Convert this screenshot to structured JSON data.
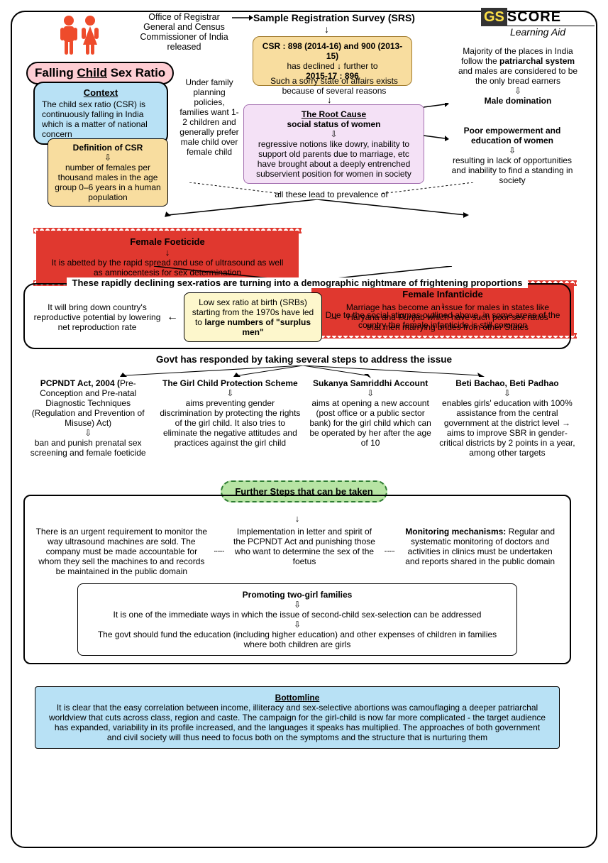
{
  "logo": {
    "gs": "GS",
    "score": "SCORE",
    "sub": "Learning Aid"
  },
  "header": {
    "office": "Office of Registrar General and Census Commissioner of India released",
    "srs_title": "Sample Registration Survey (SRS)"
  },
  "title": {
    "prefix": "Falling ",
    "mid": "Child",
    "suffix": " Sex Ratio"
  },
  "context": {
    "h": "Context",
    "t": "The child sex ratio (CSR) is continuously falling in India which is a matter of national concern"
  },
  "def": {
    "h": "Definition of CSR",
    "t": "number of females per thousand males in the age group 0–6 years in a human population"
  },
  "family": "Under family planning policies, families want 1-2 children and generally prefer male child over female child",
  "srs": {
    "l1": "CSR : 898 (2014-16) and 900 (2013-15)",
    "l2": "has declined ↓ further to",
    "l3": "2015-17 : 896"
  },
  "sorry": "Such a sorry state of affairs exists because of several reasons",
  "root": {
    "h": "The Root Cause",
    "s": "social status of women",
    "t": "regressive notions like  dowry, inability to support old parents due to marriage, etc have brought about a deeply entrenched subservient position for women in society"
  },
  "patriarchal": {
    "t": "Majority of the places in India follow the patriarchal system and males are considered to be the only bread earners",
    "c": "Male domination"
  },
  "empower": {
    "h": "Poor empowerment and education of women",
    "t": "resulting in lack of opportunities and inability to find a standing in society"
  },
  "leadto": "all these lead to prevalence of",
  "foeticide": {
    "h": "Female Foeticide",
    "t": "It is abetted by the rapid spread and use of ultrasound as well as amniocentesis for sex determination"
  },
  "infanticide": {
    "h": "Female Infanticide",
    "t": "Due to the social stigmas outlined above, in some areas of the country the female infanticide is still common"
  },
  "nightmare": {
    "h": "These rapidly declining sex-ratios are turning into a demographic nightmare of frightening proportions",
    "left": "It will bring down country's reproductive potential by lowering net reproduction rate",
    "mid1": "Low sex ratio at birth (SRBs) starting from the 1970s have led to ",
    "mid2": "large numbers of \"surplus men\"",
    "right": "Marriage has become an issue for males in states like Haryana and Punjab which have such poor sex ratios that men marrying brides from other States"
  },
  "govt": {
    "h": "Govt has responded by taking several steps to address the issue",
    "c1h": "PCPNDT Act, 2004 (",
    "c1h2": "Pre-Conception and Pre-natal Diagnostic Techniques (Regulation and Prevention of Misuse) Act)",
    "c1t": "ban and punish prenatal sex screening and female foeticide",
    "c2h": "The Girl Child Protection Scheme",
    "c2t": "aims preventing gender discrimination by protecting the rights of the girl child. It also tries to eliminate the negative attitudes and practices against the girl child",
    "c3h": "Sukanya Samriddhi Account",
    "c3t": "aims at opening a new account (post office or a public sector bank) for the girl child which can be operated by her after the age of 10",
    "c4h": "Beti Bachao, Beti Padhao",
    "c4t": "enables girls' education with 100% assistance from the central government at the district level → aims to improve SBR in gender-critical districts by 2 points in a year, among other targets"
  },
  "further": {
    "h": "Further Steps that can be taken",
    "left": "There is an urgent requirement to monitor the way ultrasound machines are sold. The company must be made accountable for whom they sell the machines to and  records be maintained in the public domain",
    "mid": "Implementation in letter and spirit of the PCPNDT Act and punishing those who want to determine the sex of the foetus",
    "righth": "Monitoring mechanisms: ",
    "right": "Regular and systematic monitoring of doctors and activities in clinics must be undertaken and reports shared in the public domain"
  },
  "twogirl": {
    "h": "Promoting two-girl families",
    "t1": "It is one of the immediate ways in which the issue of second-child sex-selection can be addressed",
    "t2": "The govt should fund the education (including higher education) and other expenses of children in families where both children are girls"
  },
  "bottom": {
    "h": "Bottomline",
    "t": "It is clear that the easy correlation between income, illiteracy and sex-selective abortions was camouflaging a deeper patriarchal worldview that cuts across class, region and caste. The campaign for the girl-child is now far more complicated - the target audience has expanded, variability in its profile increased, and the languages it speaks has multiplied. The approaches of both government and civil society will thus need to focus both on the symptoms and the structure that is nurturing them"
  }
}
